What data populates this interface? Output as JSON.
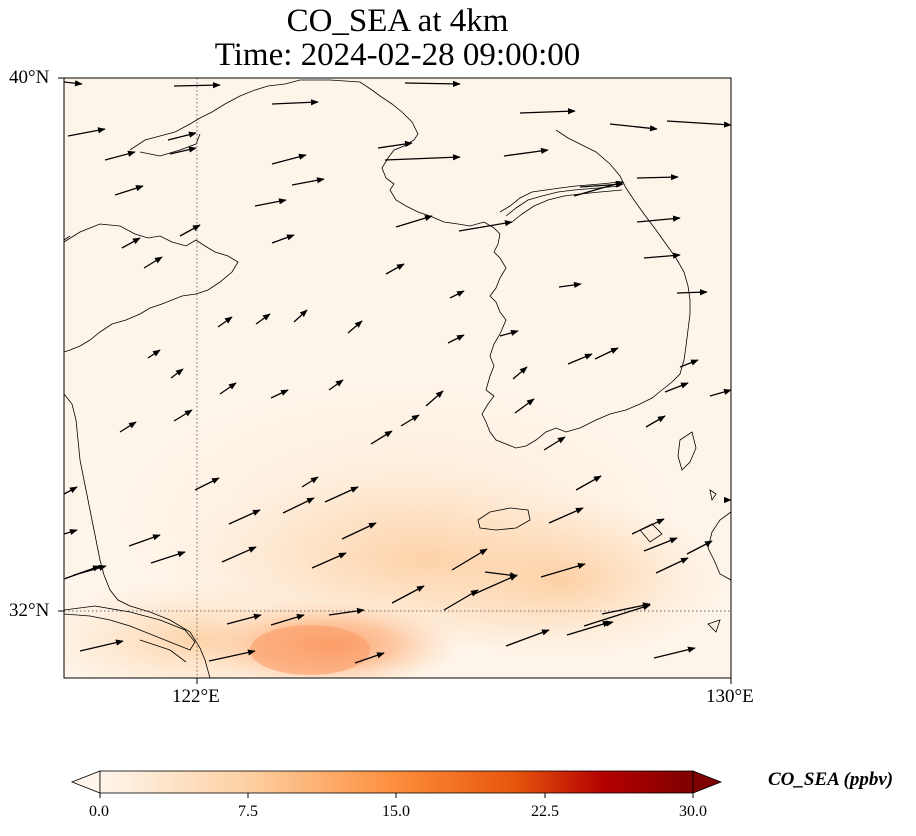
{
  "title": {
    "line1": "CO_SEA at 4km",
    "line2": "Time: 2024-02-28 09:00:00"
  },
  "map": {
    "lon_range": [
      120,
      130
    ],
    "lat_range": [
      31,
      40
    ],
    "lon_ticks": [
      {
        "value": 122,
        "label": "122°E"
      },
      {
        "value": 130,
        "label": "130°E"
      }
    ],
    "lat_ticks": [
      {
        "value": 40,
        "label": "40°N"
      },
      {
        "value": 32,
        "label": "32°N"
      }
    ],
    "gridlines": "dotted at 122°E and 32°N",
    "field": "CO_SEA concentration (ppbv), orange shading highest over the East China Sea near 31.5°N 123°E (~12 ppbv)",
    "wind_vectors": "black arrows, predominantly westerly to west-southwesterly flow"
  },
  "colorbar": {
    "label": "CO_SEA (ppbv)",
    "min": 0.0,
    "max": 30.0,
    "extend": "both",
    "colormap": "Oranges-Red",
    "ticks": [
      "0.0",
      "7.5",
      "15.0",
      "22.5",
      "30.0"
    ],
    "colors": [
      "#fff5eb",
      "#fdd0a2",
      "#fd8d3c",
      "#d94801",
      "#a50f15",
      "#67000d"
    ]
  }
}
